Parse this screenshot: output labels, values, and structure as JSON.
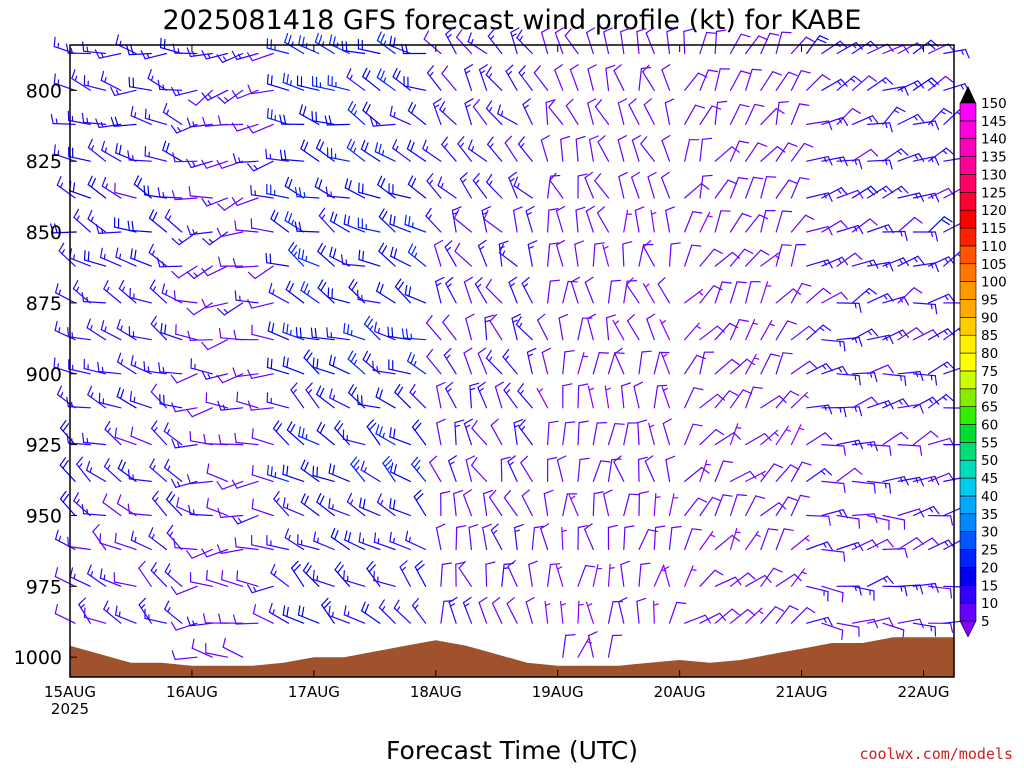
{
  "page": {
    "title": "2025081418 GFS forecast wind profile (kt) for KABE",
    "credit": "coolwx.com/models"
  },
  "chart_data": {
    "type": "wind-barb time-height",
    "title": "2025081418 GFS forecast wind profile (kt) for KABE",
    "xlabel": "Forecast Time (UTC)",
    "ylabel": "",
    "y_ticks": [
      800,
      825,
      850,
      875,
      900,
      925,
      950,
      975,
      1000
    ],
    "y_range_hPa": [
      1007,
      784
    ],
    "x_ticks": [
      {
        "label": "15AUG",
        "sub": "2025",
        "hour": 6
      },
      {
        "label": "16AUG",
        "sub": "",
        "hour": 30
      },
      {
        "label": "17AUG",
        "sub": "",
        "hour": 54
      },
      {
        "label": "18AUG",
        "sub": "",
        "hour": 78
      },
      {
        "label": "19AUG",
        "sub": "",
        "hour": 102
      },
      {
        "label": "20AUG",
        "sub": "",
        "hour": 126
      },
      {
        "label": "21AUG",
        "sub": "",
        "hour": 150
      },
      {
        "label": "22AUG",
        "sub": "",
        "hour": 174
      }
    ],
    "x_range_hours": [
      6,
      180
    ],
    "levels_hPa": [
      787,
      800,
      812,
      825,
      838,
      850,
      862,
      875,
      888,
      900,
      912,
      925,
      938,
      950,
      962,
      975,
      988,
      1000
    ],
    "barb_time_step_hours": 3,
    "colorbar": {
      "labels": [
        5,
        10,
        15,
        20,
        25,
        30,
        35,
        40,
        45,
        50,
        55,
        60,
        65,
        70,
        75,
        80,
        85,
        90,
        95,
        100,
        105,
        110,
        115,
        120,
        125,
        130,
        135,
        140,
        145,
        150
      ],
      "colors": [
        "#8800ff",
        "#6600ff",
        "#3300ff",
        "#0000ee",
        "#0022ff",
        "#0055ff",
        "#0088ff",
        "#00aaff",
        "#00ccee",
        "#00ddbb",
        "#00dd77",
        "#00dd33",
        "#33ee00",
        "#88ee00",
        "#ccff00",
        "#ffff00",
        "#ffee00",
        "#ffcc00",
        "#ffaa00",
        "#ff9900",
        "#ff7700",
        "#ff5500",
        "#ff2200",
        "#ff0000",
        "#ff0033",
        "#ff0066",
        "#ff0099",
        "#ff00bb",
        "#ff00dd",
        "#ff00ff"
      ]
    },
    "surface_pressure": {
      "hours": [
        6,
        12,
        18,
        24,
        30,
        36,
        42,
        48,
        54,
        60,
        66,
        72,
        78,
        84,
        90,
        96,
        102,
        108,
        114,
        120,
        126,
        132,
        138,
        144,
        150,
        156,
        162,
        168,
        174,
        180
      ],
      "hPa": [
        996,
        999,
        1002,
        1002,
        1003,
        1003,
        1003,
        1002,
        1000,
        1000,
        998,
        996,
        994,
        996,
        999,
        1002,
        1003,
        1003,
        1003,
        1002,
        1001,
        1002,
        1001,
        999,
        997,
        995,
        995,
        993,
        993,
        993
      ],
      "color": "#a0522d"
    },
    "wind_regimes": [
      {
        "hours": [
          6,
          30
        ],
        "dir_deg": 280,
        "speed_kt": 17
      },
      {
        "hours": [
          30,
          48
        ],
        "dir_deg": 250,
        "speed_kt": 13
      },
      {
        "hours": [
          48,
          78
        ],
        "dir_deg": 285,
        "speed_kt": 22
      },
      {
        "hours": [
          78,
          100
        ],
        "dir_deg": 320,
        "speed_kt": 14
      },
      {
        "hours": [
          100,
          126
        ],
        "dir_deg": 340,
        "speed_kt": 10
      },
      {
        "hours": [
          126,
          150
        ],
        "dir_deg": 20,
        "speed_kt": 10
      },
      {
        "hours": [
          150,
          180
        ],
        "dir_deg": 60,
        "speed_kt": 15
      }
    ]
  }
}
